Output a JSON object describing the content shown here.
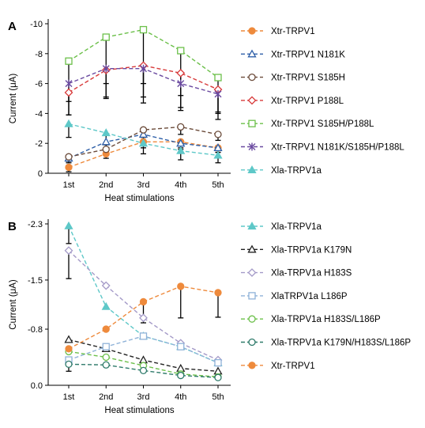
{
  "chart_data": [
    {
      "panel_label": "A",
      "type": "line",
      "xlabel": "Heat stimulations",
      "ylabel": "Current (μA)",
      "ylim": [
        0,
        -10
      ],
      "yticks": [
        0,
        -2,
        -4,
        -6,
        -8,
        -10
      ],
      "ytick_labels": [
        "0",
        "-2",
        "-4",
        "-6",
        "-8",
        "-10"
      ],
      "categories": [
        "1st",
        "2nd",
        "3rd",
        "4th",
        "5th"
      ],
      "legend_position": "right",
      "series": [
        {
          "name": "Xtr-TRPV1",
          "color": "#ee8a3c",
          "marker": "filled-circle",
          "values": [
            -0.4,
            -1.3,
            -2.1,
            -2.1,
            -1.7
          ],
          "err": [
            0.3,
            0.3,
            0.4,
            0.4,
            0.3
          ]
        },
        {
          "name": "Xtr-TRPV1 N181K",
          "color": "#2e5fa8",
          "marker": "open-triangle",
          "values": [
            -1.0,
            -2.1,
            -2.6,
            -2.0,
            -1.7
          ],
          "err": [
            0.3,
            0.4,
            0.4,
            0.4,
            0.3
          ]
        },
        {
          "name": "Xtr-TRPV1 S185H",
          "color": "#6b4b3a",
          "marker": "open-circle",
          "values": [
            -1.1,
            -1.6,
            -2.9,
            -3.1,
            -2.6
          ],
          "err": [
            0.3,
            0.3,
            0.5,
            0.5,
            0.4
          ]
        },
        {
          "name": "Xtr-TRPV1 P188L",
          "color": "#d83a3a",
          "marker": "open-diamond",
          "values": [
            -5.4,
            -6.9,
            -7.2,
            -6.7,
            -5.6
          ],
          "err": [
            1.5,
            1.8,
            2.1,
            2.3,
            1.6
          ]
        },
        {
          "name": "Xtr-TRPV1 S185H/P188L",
          "color": "#6cc04a",
          "marker": "open-square",
          "values": [
            -7.5,
            -9.1,
            -9.6,
            -8.2,
            -6.4
          ],
          "err": [
            2.7,
            3.1,
            3.6,
            3.0,
            2.3
          ]
        },
        {
          "name": "Xtr-TRPV1 N181K/S185H/P188L",
          "color": "#6a4aa0",
          "marker": "star",
          "values": [
            -6.0,
            -7.0,
            -7.0,
            -6.0,
            -5.3
          ],
          "err": [
            2.1,
            2.0,
            2.3,
            1.8,
            1.7
          ]
        },
        {
          "name": "Xla-TRPV1a",
          "color": "#5ec8c8",
          "marker": "filled-triangle",
          "values": [
            -3.3,
            -2.7,
            -2.0,
            -1.5,
            -1.2
          ],
          "err": [
            0.9,
            0.8,
            0.7,
            0.6,
            0.5
          ]
        }
      ]
    },
    {
      "panel_label": "B",
      "type": "line",
      "xlabel": "Heat stimulations",
      "ylabel": "Current (μA)",
      "ylim": [
        0,
        -2.3
      ],
      "yticks": [
        0,
        -0.8,
        -1.5,
        -2.3
      ],
      "ytick_labels": [
        "0.0",
        "-0.8",
        "-1.5",
        "-2.3"
      ],
      "categories": [
        "1st",
        "2nd",
        "3rd",
        "4th",
        "5th"
      ],
      "legend_position": "right",
      "series": [
        {
          "name": "Xla-TRPV1a",
          "color": "#5ec8c8",
          "marker": "filled-triangle",
          "values": [
            -2.27,
            -1.12,
            -0.7,
            -0.55,
            -0.32
          ],
          "err": [
            0.25,
            0.0,
            0.0,
            0.0,
            0.0
          ]
        },
        {
          "name": "Xla-TRPV1a K179N",
          "color": "#222222",
          "marker": "open-triangle",
          "values": [
            -0.65,
            -0.52,
            -0.36,
            -0.24,
            -0.2
          ],
          "err": [
            0.0,
            0.0,
            0.0,
            0.0,
            0.0
          ]
        },
        {
          "name": "Xla-TRPV1a H183S",
          "color": "#a49ac8",
          "marker": "open-diamond",
          "values": [
            -1.92,
            -1.42,
            -0.96,
            -0.6,
            -0.36
          ],
          "err": [
            0.4,
            0.0,
            0.0,
            0.0,
            0.0
          ]
        },
        {
          "name": "XlaTRPV1a L186P",
          "color": "#8fb2d8",
          "marker": "open-square",
          "values": [
            -0.36,
            -0.55,
            -0.7,
            -0.55,
            -0.32
          ],
          "err": [
            0.0,
            0.0,
            0.0,
            0.0,
            0.0
          ]
        },
        {
          "name": "Xla-TRPV1a H183S/L186P",
          "color": "#6cc04a",
          "marker": "open-circle",
          "values": [
            -0.48,
            -0.4,
            -0.28,
            -0.16,
            -0.12
          ],
          "err": [
            0.0,
            0.0,
            0.0,
            0.0,
            0.0
          ]
        },
        {
          "name": "Xla-TRPV1a K179N/H183S/L186P",
          "color": "#2e7a6a",
          "marker": "open-circle",
          "values": [
            -0.3,
            -0.29,
            -0.21,
            -0.14,
            -0.11
          ],
          "err": [
            0.1,
            0.0,
            0.0,
            0.0,
            0.0
          ]
        },
        {
          "name": "Xtr-TRPV1",
          "color": "#ee8a3c",
          "marker": "filled-circle",
          "values": [
            -0.52,
            -0.8,
            -1.19,
            -1.41,
            -1.32
          ],
          "err": [
            0.0,
            0.0,
            0.3,
            0.45,
            0.35
          ]
        }
      ]
    }
  ]
}
